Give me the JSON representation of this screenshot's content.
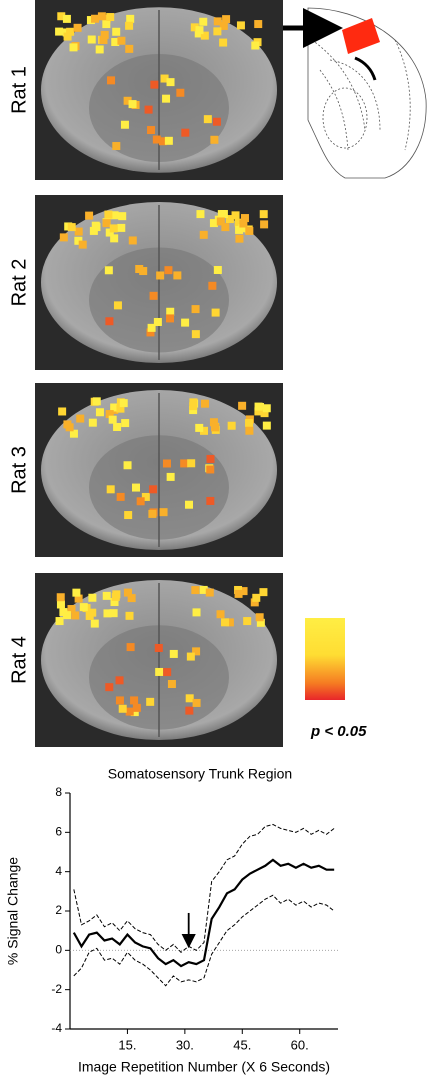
{
  "panels": [
    {
      "label": "Rat 1"
    },
    {
      "label": "Rat 2"
    },
    {
      "label": "Rat 3"
    },
    {
      "label": "Rat 4"
    }
  ],
  "colorbar": {
    "label": "p < 0.05"
  },
  "chart_data": {
    "type": "line",
    "title": "Somatosensory Trunk Region",
    "x_label": "Image Repetition Number (X 6 Seconds)",
    "y_label": "% Signal Change",
    "xlim": [
      0,
      70
    ],
    "xticks": [
      {
        "value": 15,
        "label": "15."
      },
      {
        "value": 30,
        "label": "30."
      },
      {
        "value": 45,
        "label": "45."
      },
      {
        "value": 60,
        "label": "60."
      }
    ],
    "ylim": [
      -4,
      8
    ],
    "yticks": [
      -4,
      -2,
      0,
      2,
      4,
      6,
      8
    ],
    "reference_line": 0,
    "annotation_arrow": {
      "x": 31,
      "y_from": 1.9,
      "y_to": 0.2
    },
    "x": [
      1,
      3,
      5,
      7,
      9,
      11,
      13,
      15,
      17,
      19,
      21,
      23,
      25,
      27,
      29,
      31,
      33,
      35,
      37,
      39,
      41,
      43,
      45,
      47,
      49,
      51,
      53,
      55,
      57,
      59,
      61,
      63,
      65,
      67,
      69
    ],
    "series": [
      {
        "color": "#000000",
        "style": "solid",
        "values": [
          0.9,
          0.2,
          0.8,
          0.9,
          0.5,
          0.6,
          0.3,
          0.8,
          0.4,
          0.2,
          0.1,
          -0.4,
          -0.7,
          -0.5,
          -0.8,
          -0.6,
          -0.7,
          -0.5,
          1.6,
          2.2,
          2.9,
          3.1,
          3.6,
          3.9,
          4.1,
          4.3,
          4.6,
          4.3,
          4.4,
          4.2,
          4.4,
          4.2,
          4.3,
          4.1,
          4.1
        ]
      },
      {
        "color": "#000000",
        "style": "dashed",
        "values": [
          3.1,
          1.3,
          1.5,
          1.8,
          1.2,
          1.4,
          1.0,
          1.5,
          1.1,
          0.9,
          0.8,
          0.3,
          0.0,
          0.3,
          -0.1,
          0.2,
          0.0,
          0.4,
          3.5,
          4.0,
          4.6,
          4.8,
          5.4,
          5.8,
          5.9,
          6.3,
          6.4,
          6.2,
          6.1,
          6.0,
          6.2,
          5.9,
          6.1,
          5.9,
          6.2
        ]
      },
      {
        "color": "#000000",
        "style": "dashed",
        "values": [
          -1.3,
          -0.9,
          -0.1,
          0.1,
          -0.5,
          -0.4,
          -0.7,
          -0.1,
          -0.5,
          -0.7,
          -1.0,
          -1.4,
          -1.8,
          -1.3,
          -1.6,
          -1.5,
          -1.6,
          -1.4,
          -0.2,
          0.4,
          1.0,
          1.3,
          1.7,
          2.0,
          2.3,
          2.6,
          2.8,
          2.4,
          2.6,
          2.3,
          2.5,
          2.2,
          2.4,
          2.3,
          2.0
        ]
      }
    ]
  }
}
